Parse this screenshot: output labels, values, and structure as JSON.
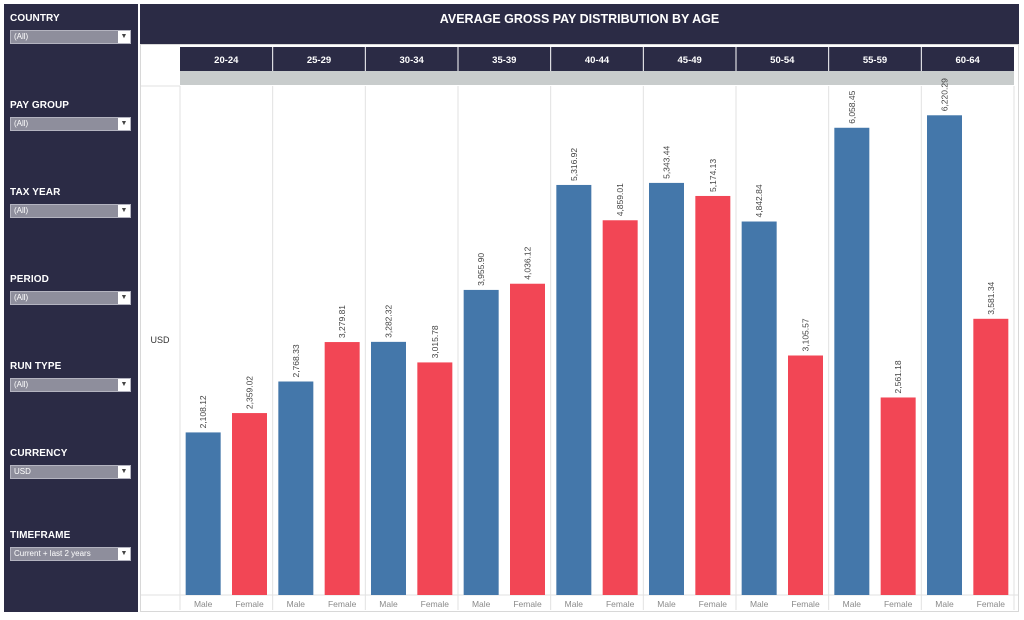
{
  "filters": [
    {
      "label": "COUNTRY",
      "value": "(All)"
    },
    {
      "label": "PAY GROUP",
      "value": "(All)"
    },
    {
      "label": "TAX YEAR",
      "value": "(All)"
    },
    {
      "label": "PERIOD",
      "value": "(All)"
    },
    {
      "label": "RUN TYPE",
      "value": "(All)"
    },
    {
      "label": "CURRENCY",
      "value": "USD"
    },
    {
      "label": "TIMEFRAME",
      "value": "Current + last 2 years"
    }
  ],
  "colors": {
    "sidebar": "#2b2b45",
    "header": "#2b2b45",
    "male": "#4477aa",
    "female": "#f24655",
    "subheader": "#c8cccc"
  },
  "chart_data": {
    "type": "bar",
    "title": "AVERAGE GROSS PAY DISTRIBUTION BY AGE",
    "ylabel": "USD",
    "ylim": [
      0,
      6600
    ],
    "grid": false,
    "categories": [
      "20-24",
      "25-29",
      "30-34",
      "35-39",
      "40-44",
      "45-49",
      "50-54",
      "55-59",
      "60-64"
    ],
    "sub_categories": [
      "Male",
      "Female"
    ],
    "series": [
      {
        "name": "Male",
        "values": [
          2108.12,
          2768.33,
          3282.32,
          3955.9,
          5316.92,
          5343.44,
          4842.84,
          6058.45,
          6220.29
        ],
        "labels": [
          "2,108.12",
          "2,768.33",
          "3,282.32",
          "3,955.90",
          "5,316.92",
          "5,343.44",
          "4,842.84",
          "6,058.45",
          "6,220.29"
        ]
      },
      {
        "name": "Female",
        "values": [
          2359.02,
          3279.81,
          3015.78,
          4036.12,
          4859.01,
          5174.13,
          3105.57,
          2561.18,
          3581.34
        ],
        "labels": [
          "2,359.02",
          "3,279.81",
          "3,015.78",
          "4,036.12",
          "4,859.01",
          "5,174.13",
          "3,105.57",
          "2,561.18",
          "3,581.34"
        ]
      }
    ]
  }
}
